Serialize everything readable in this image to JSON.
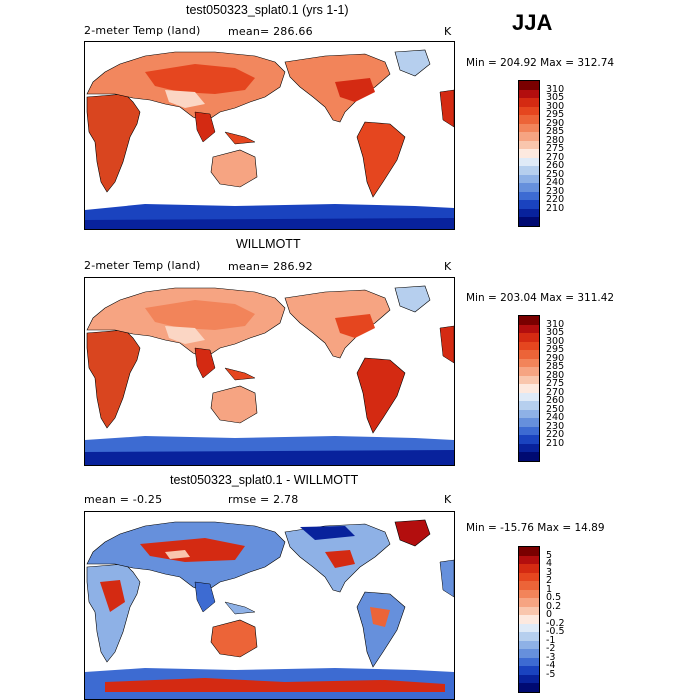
{
  "season": "JJA",
  "panels": [
    {
      "title": "test050323_splat0.1 (yrs 1-1)",
      "field": "2-meter Temp (land)",
      "stat": "mean= 286.66",
      "stat2": "",
      "units": "K",
      "minmax": "Min = 204.92 Max = 312.74",
      "colorbar": {
        "labels": [
          "310",
          "305",
          "300",
          "295",
          "290",
          "285",
          "280",
          "275",
          "270",
          "260",
          "250",
          "240",
          "230",
          "220",
          "210"
        ],
        "colors": [
          "#7a0000",
          "#b30e0e",
          "#d42a12",
          "#e5461f",
          "#ec6438",
          "#f2845a",
          "#f6a482",
          "#f9c6ad",
          "#fde9df",
          "#dfeaf7",
          "#b6cfee",
          "#8eb1e6",
          "#6690dc",
          "#3d6bd2",
          "#1a43bf",
          "#08229c",
          "#000a72"
        ]
      }
    },
    {
      "title": "WILLMOTT",
      "field": "2-meter Temp (land)",
      "stat": "mean= 286.92",
      "stat2": "",
      "units": "K",
      "minmax": "Min = 203.04 Max = 311.42",
      "colorbar": {
        "labels": [
          "310",
          "305",
          "300",
          "295",
          "290",
          "285",
          "280",
          "275",
          "270",
          "260",
          "250",
          "240",
          "230",
          "220",
          "210"
        ],
        "colors": [
          "#7a0000",
          "#b30e0e",
          "#d42a12",
          "#e5461f",
          "#ec6438",
          "#f2845a",
          "#f6a482",
          "#f9c6ad",
          "#fde9df",
          "#dfeaf7",
          "#b6cfee",
          "#8eb1e6",
          "#6690dc",
          "#3d6bd2",
          "#1a43bf",
          "#08229c",
          "#000a72"
        ]
      }
    },
    {
      "title": "test050323_splat0.1 - WILLMOTT",
      "field": "",
      "stat": "mean =   -0.25",
      "stat2": "rmse =    2.78",
      "units": "K",
      "minmax": "Min = -15.76 Max =  14.89",
      "colorbar": {
        "labels": [
          "5",
          "4",
          "3",
          "2",
          "1",
          "0.5",
          "0.2",
          "0",
          "-0.2",
          "-0.5",
          "-1",
          "-2",
          "-3",
          "-4",
          "-5"
        ],
        "colors": [
          "#7a0000",
          "#b30e0e",
          "#d42a12",
          "#e5461f",
          "#ec6438",
          "#f2845a",
          "#f6a482",
          "#f9c6ad",
          "#fde9df",
          "#dfeaf7",
          "#b6cfee",
          "#8eb1e6",
          "#6690dc",
          "#3d6bd2",
          "#1a43bf",
          "#08229c",
          "#000a72"
        ]
      }
    }
  ]
}
